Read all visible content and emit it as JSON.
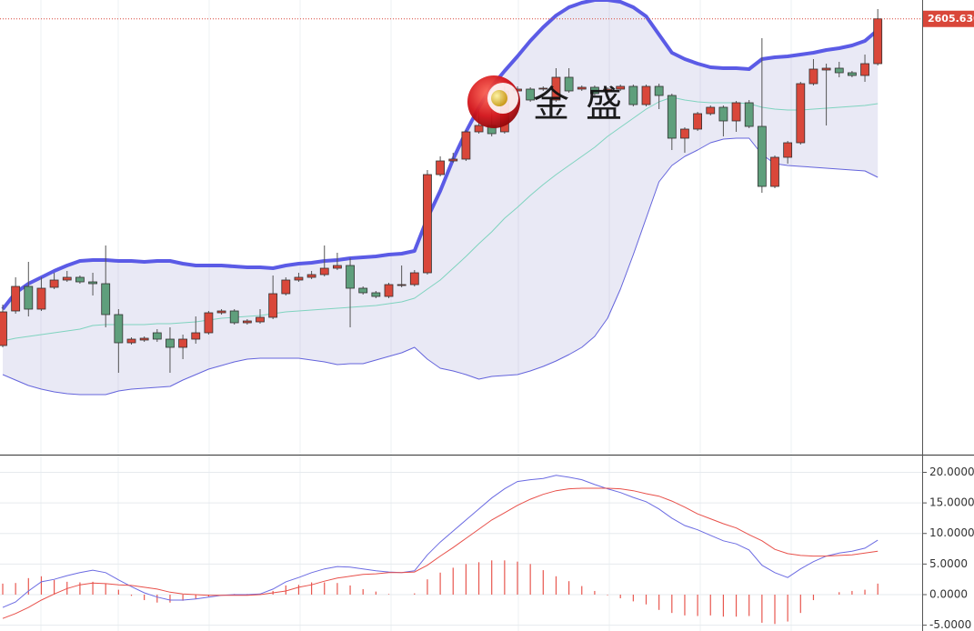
{
  "watermark": "金盛",
  "chart_data": [
    {
      "type": "candlestick",
      "ylim": [
        2366,
        2616
      ],
      "up_color": "#d9473a",
      "down_color": "#5f9f7c",
      "last_price": {
        "value": 2605.63,
        "label": "2605.630"
      },
      "open": [
        2426,
        2445,
        2458.5,
        2446,
        2458,
        2462,
        2463.5,
        2461,
        2460,
        2443,
        2427.5,
        2429,
        2433,
        2429.5,
        2425,
        2429.5,
        2433,
        2444,
        2445,
        2438.5,
        2439,
        2441.5,
        2454.5,
        2462,
        2463.5,
        2465,
        2468.5,
        2470,
        2457.5,
        2455,
        2453,
        2459,
        2459.5,
        2466,
        2520,
        2527.5,
        2528.5,
        2543.5,
        2547,
        2543.5,
        2566,
        2567,
        2567,
        2561,
        2573.5,
        2567,
        2568,
        2566,
        2567,
        2568.5,
        2558.5,
        2568.5,
        2563.5,
        2540,
        2545,
        2553.5,
        2557,
        2549.5,
        2559.5,
        2546.5,
        2513.5,
        2529.5,
        2537.5,
        2570,
        2577.5,
        2578.5,
        2576,
        2574.5,
        2581
      ],
      "high": [
        2448.5,
        2463.5,
        2472,
        2463.5,
        2466,
        2467,
        2464.5,
        2466,
        2481,
        2446,
        2430.5,
        2431,
        2435,
        2436,
        2432,
        2442,
        2445,
        2446,
        2446,
        2440.5,
        2446,
        2464.5,
        2463.5,
        2466,
        2467,
        2481,
        2477,
        2474,
        2458.5,
        2456,
        2460.5,
        2470,
        2467.5,
        2522.5,
        2530,
        2532,
        2544.5,
        2556,
        2556,
        2568.5,
        2568.5,
        2568,
        2568.5,
        2578.5,
        2578.5,
        2569,
        2569,
        2568,
        2569.5,
        2569.5,
        2569.5,
        2570,
        2564.5,
        2546,
        2554.5,
        2558,
        2558,
        2560.5,
        2561,
        2595,
        2530.5,
        2538.5,
        2571,
        2583.5,
        2581,
        2582,
        2577,
        2586,
        2611
      ],
      "low": [
        2425,
        2443.5,
        2442,
        2445,
        2457,
        2461,
        2460,
        2453.5,
        2436,
        2411,
        2426.5,
        2428,
        2428,
        2411,
        2418.5,
        2427,
        2432,
        2443,
        2437.5,
        2437.5,
        2438,
        2440.5,
        2453.5,
        2461,
        2462.5,
        2464,
        2467.5,
        2436,
        2454,
        2452,
        2452,
        2458,
        2458.5,
        2465,
        2519,
        2526.5,
        2527.5,
        2542.5,
        2541,
        2542.5,
        2565,
        2560,
        2566,
        2560,
        2565,
        2566,
        2563.5,
        2565,
        2566,
        2557.5,
        2557.5,
        2556,
        2533.5,
        2532,
        2544,
        2552.5,
        2541,
        2543.5,
        2545.5,
        2510,
        2512.5,
        2526,
        2536.5,
        2569,
        2547,
        2573.5,
        2573.5,
        2571,
        2580
      ],
      "close": [
        2444.5,
        2458.5,
        2446,
        2457.5,
        2462,
        2463.5,
        2461,
        2460,
        2443,
        2427.5,
        2429.5,
        2430,
        2429.5,
        2425,
        2429.5,
        2433,
        2444,
        2445,
        2438.5,
        2439.5,
        2441.5,
        2454.5,
        2462,
        2463.5,
        2465,
        2468.5,
        2470,
        2457.5,
        2455,
        2453,
        2459.5,
        2459.5,
        2466,
        2520,
        2527.5,
        2528.5,
        2543.5,
        2547,
        2542.5,
        2566,
        2567,
        2561,
        2567.5,
        2573.5,
        2566,
        2568,
        2564.5,
        2567,
        2568.5,
        2558.5,
        2568.5,
        2563.5,
        2540,
        2545,
        2553.5,
        2557,
        2549.5,
        2559.5,
        2546.5,
        2513.5,
        2529.5,
        2537.5,
        2570,
        2578,
        2578.5,
        2576,
        2574.5,
        2581,
        2605.63
      ],
      "band_fill": "rgba(118,118,190,0.16)",
      "series": [
        {
          "color": "#5b5be6",
          "width": 4,
          "values": [
            2446,
            2455,
            2460,
            2463.5,
            2467,
            2470,
            2472.5,
            2473,
            2473,
            2472.5,
            2472.5,
            2472,
            2472.5,
            2472.5,
            2471,
            2470,
            2470,
            2470,
            2469.5,
            2469,
            2469,
            2468.5,
            2470,
            2471,
            2471.5,
            2472.5,
            2473,
            2474,
            2474.5,
            2475,
            2476,
            2476.5,
            2478,
            2496,
            2511,
            2528.5,
            2543.5,
            2557,
            2568.5,
            2577,
            2585,
            2593.5,
            2601,
            2607.5,
            2612,
            2614.5,
            2616,
            2616,
            2615,
            2612,
            2607,
            2597,
            2587,
            2583.5,
            2581,
            2579,
            2578.5,
            2578.5,
            2578,
            2583.5,
            2584.5,
            2585,
            2586,
            2587,
            2588.5,
            2589.5,
            2591,
            2593.5,
            2599.5
          ]
        },
        {
          "color": "#7fd3bf",
          "width": 1,
          "values": [
            2428.5,
            2430,
            2431,
            2432,
            2433,
            2434,
            2435,
            2437,
            2437.5,
            2437.5,
            2437.5,
            2437.5,
            2438,
            2438,
            2438.5,
            2439,
            2440,
            2441,
            2441.5,
            2442,
            2442.5,
            2443.5,
            2444.5,
            2445,
            2445.5,
            2446,
            2446.5,
            2447,
            2447.5,
            2448,
            2449,
            2450,
            2452,
            2457,
            2462,
            2468.5,
            2475,
            2482,
            2488.5,
            2496,
            2502,
            2508.5,
            2514.5,
            2520,
            2525,
            2530,
            2535,
            2541,
            2546,
            2551,
            2556,
            2560,
            2562.5,
            2561,
            2560,
            2559.5,
            2559.5,
            2559.5,
            2559,
            2557,
            2556,
            2555.5,
            2555.5,
            2556,
            2556.5,
            2557,
            2557.5,
            2558,
            2559
          ]
        },
        {
          "color": "#6464dc",
          "width": 1,
          "values": [
            2410,
            2407,
            2404,
            2402,
            2400.5,
            2399.5,
            2399,
            2399,
            2399,
            2401,
            2402,
            2402.5,
            2403,
            2403.5,
            2407,
            2410,
            2413,
            2415,
            2417,
            2418.5,
            2419,
            2419,
            2419,
            2419,
            2418,
            2417,
            2415.5,
            2416,
            2416,
            2418,
            2420,
            2422,
            2425,
            2418.5,
            2413.5,
            2412,
            2410,
            2407.5,
            2409,
            2409.5,
            2410,
            2412,
            2414.5,
            2417.5,
            2421,
            2425,
            2431,
            2441,
            2457,
            2476,
            2496,
            2516,
            2525,
            2530,
            2533.5,
            2537.5,
            2539.5,
            2540,
            2540,
            2531,
            2526,
            2525,
            2524.5,
            2524,
            2523.5,
            2523,
            2522.5,
            2522,
            2518.5
          ]
        }
      ]
    },
    {
      "type": "macd",
      "ylim": [
        -5.95,
        22.6
      ],
      "yticks": [
        {
          "value": 20,
          "label": "20.0000"
        },
        {
          "value": 15,
          "label": "15.0000"
        },
        {
          "value": 10,
          "label": "10.0000"
        },
        {
          "value": 5,
          "label": "5.0000"
        },
        {
          "value": 0,
          "label": "0.0000"
        },
        {
          "value": -5,
          "label": "-5.0000"
        }
      ],
      "grid": true,
      "histogram": {
        "color": "#e8574f",
        "values": [
          1.8,
          1.9,
          2.7,
          3.0,
          2.4,
          2.1,
          2.0,
          2.1,
          1.8,
          0.8,
          -0.2,
          -0.9,
          -1.3,
          -1.3,
          -1.0,
          -0.7,
          -0.3,
          0.0,
          0.1,
          0.1,
          0.1,
          0.6,
          1.5,
          1.6,
          2.0,
          2.0,
          1.9,
          1.5,
          0.9,
          0.5,
          0.1,
          0.0,
          0.2,
          2.5,
          3.6,
          4.4,
          5.0,
          5.3,
          5.6,
          5.6,
          5.4,
          5.0,
          4.0,
          3.0,
          2.2,
          1.4,
          0.6,
          -0.1,
          -0.6,
          -1.1,
          -1.6,
          -2.5,
          -3.0,
          -3.4,
          -3.5,
          -3.4,
          -3.6,
          -3.6,
          -3.5,
          -4.6,
          -4.8,
          -4.4,
          -3.0,
          -0.9,
          0.0,
          0.4,
          0.6,
          0.8,
          1.8
        ]
      },
      "series": [
        {
          "color": "#6b6be2",
          "values": [
            -2.1,
            -1.2,
            0.6,
            2.1,
            2.5,
            3.1,
            3.6,
            4.0,
            3.6,
            2.4,
            1.3,
            0.3,
            -0.4,
            -0.9,
            -0.9,
            -0.7,
            -0.4,
            -0.1,
            0.0,
            0.0,
            0.1,
            0.9,
            2.1,
            2.8,
            3.6,
            4.2,
            4.6,
            4.5,
            4.2,
            3.9,
            3.7,
            3.6,
            3.9,
            6.5,
            8.6,
            10.4,
            12.2,
            14.0,
            15.8,
            17.3,
            18.5,
            18.8,
            19.0,
            19.5,
            19.2,
            18.8,
            18.0,
            17.3,
            16.7,
            15.9,
            15.2,
            14.0,
            12.5,
            11.3,
            10.6,
            9.7,
            8.8,
            8.3,
            7.3,
            4.8,
            3.6,
            2.8,
            4.2,
            5.4,
            6.3,
            6.8,
            7.1,
            7.6,
            8.9
          ]
        },
        {
          "color": "#e8504a",
          "values": [
            -3.9,
            -3.1,
            -2.1,
            -0.9,
            0.1,
            1.0,
            1.6,
            1.9,
            1.8,
            1.6,
            1.5,
            1.2,
            0.9,
            0.4,
            0.1,
            0.0,
            -0.1,
            -0.1,
            -0.1,
            -0.1,
            0.0,
            0.3,
            0.6,
            1.2,
            1.6,
            2.2,
            2.7,
            3.0,
            3.3,
            3.4,
            3.6,
            3.6,
            3.7,
            4.8,
            6.3,
            7.7,
            9.2,
            10.7,
            12.2,
            13.4,
            14.6,
            15.6,
            16.4,
            17.0,
            17.3,
            17.4,
            17.4,
            17.4,
            17.3,
            17.0,
            16.5,
            16.1,
            15.3,
            14.3,
            13.2,
            12.4,
            11.6,
            10.9,
            9.8,
            8.8,
            7.4,
            6.7,
            6.4,
            6.3,
            6.3,
            6.4,
            6.5,
            6.8,
            7.1
          ]
        }
      ]
    }
  ]
}
